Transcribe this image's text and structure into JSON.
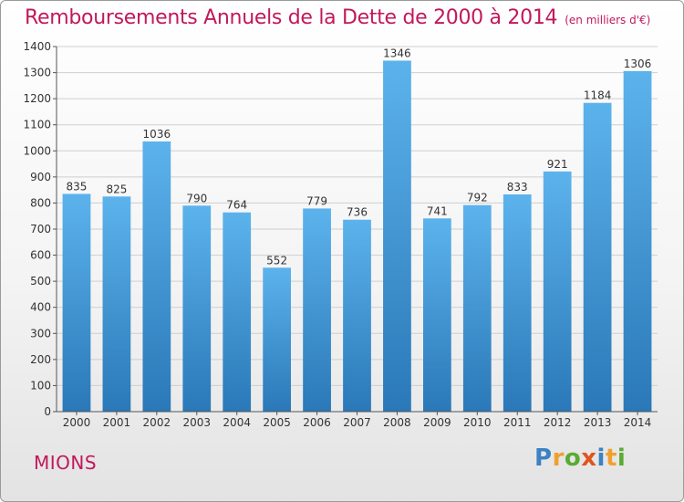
{
  "title": "Remboursements Annuels de la Dette de 2000 à 2014",
  "subtitle": "(en milliers d'€)",
  "city": "MIONS",
  "logo": {
    "letters": [
      {
        "char": "P",
        "color": "#3b82c4"
      },
      {
        "char": "r",
        "color": "#f0a030"
      },
      {
        "char": "o",
        "color": "#5aab32"
      },
      {
        "char": "x",
        "color": "#e0541e"
      },
      {
        "char": "i",
        "color": "#3b82c4"
      },
      {
        "char": "t",
        "color": "#f0a030"
      },
      {
        "char": "i",
        "color": "#5aab32"
      }
    ]
  },
  "chart_data": {
    "type": "bar",
    "categories": [
      "2000",
      "2001",
      "2002",
      "2003",
      "2004",
      "2005",
      "2006",
      "2007",
      "2008",
      "2009",
      "2010",
      "2011",
      "2012",
      "2013",
      "2014"
    ],
    "values": [
      835,
      825,
      1036,
      790,
      764,
      552,
      779,
      736,
      1346,
      741,
      792,
      833,
      921,
      1184,
      1306
    ],
    "ylim": [
      0,
      1400
    ],
    "yticks": [
      "0",
      "100",
      "200",
      "300",
      "400",
      "500",
      "600",
      "700",
      "800",
      "900",
      "1000",
      "1100",
      "1200",
      "1300",
      "1400"
    ],
    "grid": true,
    "colors": {
      "bar_top": "#5cb3ec",
      "bar_bottom": "#2a78b8",
      "grid": "#cfcfcf",
      "axis": "#555555",
      "text": "#333333"
    }
  }
}
